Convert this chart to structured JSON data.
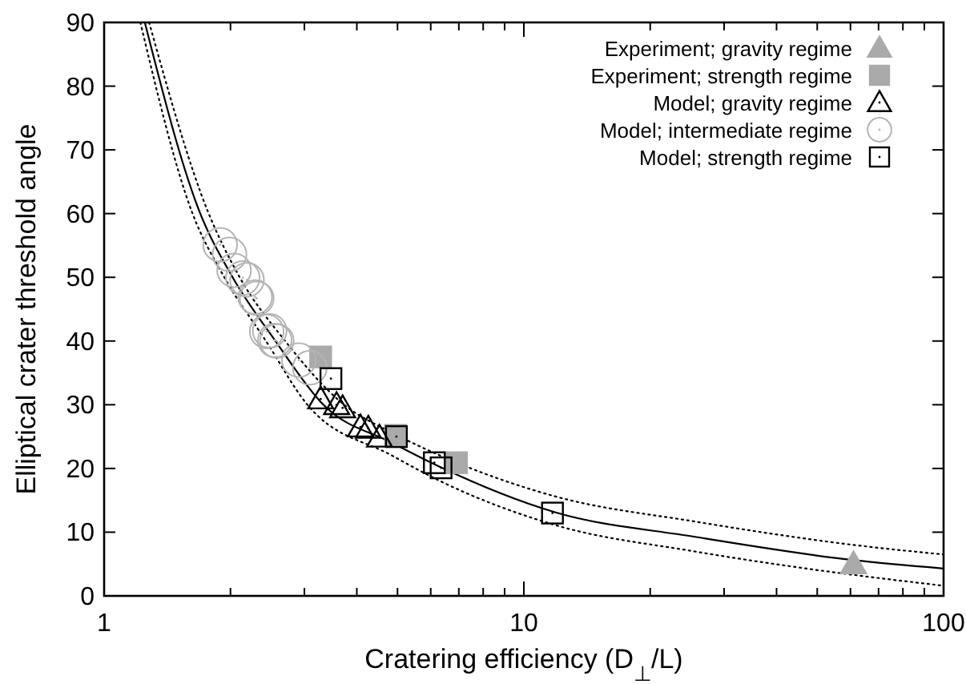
{
  "chart_data": {
    "type": "scatter",
    "xlabel": "Cratering efficiency (D$_{⊥}$/L)",
    "ylabel": "Elliptical crater threshold angle",
    "log": "x",
    "xlim": [
      1,
      100
    ],
    "ylim": [
      0,
      90
    ],
    "xticks": [
      1,
      {
        "value": 2,
        "label": null
      },
      {
        "value": 3,
        "label": null
      },
      {
        "value": 4,
        "label": null
      },
      {
        "value": 5,
        "label": null
      },
      {
        "value": 6,
        "label": null
      },
      {
        "value": 7,
        "label": null
      },
      {
        "value": 8,
        "label": null
      },
      {
        "value": 9,
        "label": null
      },
      10,
      {
        "value": 20,
        "label": null
      },
      {
        "value": 30,
        "label": null
      },
      {
        "value": 40,
        "label": null
      },
      {
        "value": 50,
        "label": null
      },
      {
        "value": 60,
        "label": null
      },
      {
        "value": 70,
        "label": null
      },
      {
        "value": 80,
        "label": null
      },
      {
        "value": 90,
        "label": null
      },
      100
    ],
    "yticks": [
      0,
      10,
      20,
      30,
      40,
      50,
      60,
      70,
      80,
      90
    ],
    "grid": false,
    "legend": "top right",
    "series": [
      {
        "type": "line",
        "color": "#000000",
        "line_style": "dotted",
        "marker": "none",
        "x": [
          1.28,
          1.77,
          2.1,
          2.7,
          3.73,
          4.86,
          6.33,
          11.9,
          25.4,
          61,
          100
        ],
        "values": [
          90,
          60.2,
          50.1,
          40,
          30,
          25.6,
          22,
          15.6,
          11.7,
          8,
          6.5
        ]
      },
      {
        "type": "line",
        "color": "#000000",
        "line_style": "dotted",
        "marker": "none",
        "x": [
          1.22,
          1.62,
          1.93,
          2.43,
          3.05,
          4.86,
          6.33,
          11.9,
          25.4,
          61,
          100
        ],
        "values": [
          90,
          60.2,
          50.1,
          40,
          30,
          22,
          18,
          11.1,
          7,
          3.3,
          1.6
        ]
      },
      {
        "type": "line",
        "color": "#000000",
        "line_style": "solid",
        "marker": "none",
        "x": [
          1.25,
          1.69,
          2.02,
          2.56,
          3.33,
          4.86,
          6.33,
          11.9,
          25.4,
          61.2,
          100
        ],
        "values": [
          90,
          60.2,
          50.1,
          40,
          30,
          24,
          20.2,
          13.1,
          9.3,
          5.6,
          4.3
        ]
      },
      {
        "name": "Experiment; gravity regime",
        "color": "#aaaaaa",
        "marker": "triangle",
        "x": [
          61
        ],
        "values": [
          5
        ]
      },
      {
        "name": "Experiment; strength regime",
        "color": "#aaaaaa",
        "marker": "square",
        "x": [
          3.28,
          4.95,
          6.91
        ],
        "values": [
          37.5,
          25.2,
          20.9
        ]
      },
      {
        "name": "Model; gravity regime",
        "color": "#000000",
        "marker": "triangle",
        "x": [
          3.28,
          3.58,
          3.7,
          4.08,
          4.26,
          4.53
        ],
        "values": [
          30.9,
          30,
          29.5,
          26.5,
          26.3,
          24.9
        ]
      },
      {
        "name": "Model; intermediate regime",
        "color": "#b4b4b4",
        "marker": "circle",
        "x": [
          1.89,
          1.99,
          2.04,
          2.14,
          2.19,
          2.29,
          2.31,
          2.44,
          2.48,
          2.55,
          2.58,
          2.91,
          3.09
        ],
        "values": [
          55.1,
          53.6,
          51.1,
          49.9,
          49.6,
          46.9,
          46.7,
          41.5,
          41.6,
          40.1,
          40,
          37,
          35.8
        ]
      },
      {
        "name": "Model; strength regime",
        "color": "#000000",
        "marker": "square",
        "x": [
          3.47,
          4.97,
          6.12,
          6.35,
          11.7
        ],
        "values": [
          34.1,
          25,
          20.9,
          20.1,
          13
        ]
      }
    ]
  }
}
